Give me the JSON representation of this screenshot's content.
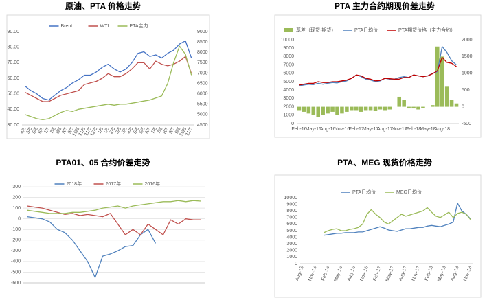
{
  "chart_data": [
    {
      "type": "line",
      "title": "原油、PTA 价格走势",
      "categories": [
        "4/5",
        "5/5",
        "5/5",
        "6/5",
        "7/5",
        "7/5",
        "8/5",
        "9/5",
        "9/5",
        "10/5",
        "11/5",
        "11/5",
        "12/5",
        "1/5",
        "1/5",
        "2/5",
        "3/5",
        "3/5",
        "4/5",
        "5/5",
        "5/5",
        "6/5",
        "7/5",
        "7/5",
        "8/5",
        "9/5",
        "9/5",
        "10/5",
        "11/5"
      ],
      "series": [
        {
          "name": "Brent",
          "color": "#4472c4",
          "values": [
            55,
            52,
            50,
            47,
            46,
            49,
            52,
            54,
            57,
            59,
            62,
            62,
            64,
            67,
            69,
            66,
            64,
            66,
            70,
            76,
            77,
            74,
            75,
            73,
            76,
            78,
            82,
            84,
            73
          ]
        },
        {
          "name": "WTI",
          "color": "#c0504d",
          "values": [
            51,
            49,
            47,
            45,
            45,
            47,
            49,
            50,
            51,
            52,
            56,
            57,
            58,
            60,
            63,
            61,
            61,
            63,
            66,
            70,
            70,
            66,
            71,
            69,
            68,
            69,
            71,
            74,
            63
          ]
        },
        {
          "name": "PTA主力",
          "color": "#9bbb59",
          "axis": "y2",
          "values": [
            5000,
            4900,
            4800,
            4750,
            4800,
            4950,
            5100,
            5200,
            5150,
            5250,
            5300,
            5350,
            5400,
            5450,
            5500,
            5450,
            5500,
            5500,
            5550,
            5600,
            5650,
            5700,
            5800,
            5900,
            6500,
            7500,
            8300,
            7900,
            6900
          ]
        }
      ],
      "ylim": [
        30,
        90
      ],
      "yticks": [
        {
          "value": 30,
          "label": "30.00"
        },
        {
          "value": 40,
          "label": "40.00"
        },
        {
          "value": 50,
          "label": "50.00"
        },
        {
          "value": 60,
          "label": "60.00"
        },
        {
          "value": 70,
          "label": "70.00"
        },
        {
          "value": 80,
          "label": "80.00"
        },
        {
          "value": 90,
          "label": "90.00"
        }
      ],
      "y2lim": [
        4500,
        9000
      ],
      "y2ticks": [
        4500,
        5000,
        5500,
        6000,
        6500,
        7000,
        7500,
        8000,
        8500,
        9000
      ],
      "xtick_rotation": -60,
      "grid": false
    },
    {
      "type": "line",
      "title": "PTA 主力合约期现价差走势",
      "categories": [
        "Feb-16",
        null,
        null,
        "May-16",
        null,
        null,
        "Aug-16",
        null,
        null,
        "Nov-16",
        null,
        null,
        "Feb-17",
        null,
        null,
        "May-17",
        null,
        null,
        "Aug-17",
        null,
        null,
        "Nov-17",
        null,
        null,
        "Feb-18",
        null,
        null,
        "May-18",
        null,
        null,
        "Aug-18",
        null,
        null,
        null
      ],
      "series": [
        {
          "name": "基差（现货-期货）",
          "color": "#9bbb59",
          "type": "bar",
          "axis": "y2",
          "values": [
            -100,
            -150,
            -200,
            -250,
            -300,
            -250,
            -200,
            -150,
            -250,
            -200,
            -150,
            -100,
            -100,
            -150,
            -100,
            -100,
            -120,
            -80,
            -100,
            -80,
            0,
            300,
            200,
            -50,
            -50,
            -80,
            -30,
            0,
            50,
            1800,
            1500,
            600,
            200,
            100
          ]
        },
        {
          "name": "PTA日均价",
          "color": "#4f81bd",
          "values": [
            4500,
            4600,
            4700,
            4650,
            4800,
            4700,
            4800,
            4900,
            4850,
            5000,
            5100,
            5400,
            5800,
            5600,
            5300,
            5200,
            5000,
            5100,
            5400,
            5300,
            5300,
            5500,
            5600,
            5500,
            5800,
            5700,
            5600,
            5700,
            6000,
            6200,
            9200,
            8500,
            7500,
            7000
          ]
        },
        {
          "name": "PTA期货价格（主力合约）",
          "color": "#c00000",
          "values": [
            4600,
            4700,
            4800,
            4800,
            5000,
            4900,
            4900,
            5000,
            5000,
            5100,
            5200,
            5400,
            5800,
            5700,
            5400,
            5300,
            5100,
            5150,
            5400,
            5350,
            5300,
            5300,
            5500,
            5500,
            5800,
            5700,
            5600,
            5700,
            5950,
            6300,
            7900,
            7300,
            7200,
            6800
          ]
        }
      ],
      "ylim": [
        0,
        10000
      ],
      "yticks": [
        0,
        1000,
        2000,
        3000,
        4000,
        5000,
        6000,
        7000,
        8000,
        9000,
        10000
      ],
      "y2lim": [
        -500,
        2000
      ],
      "y2ticks": [
        -500,
        0,
        500,
        1000,
        1500,
        2000
      ],
      "grid": false
    },
    {
      "type": "line",
      "title": "PTA01、05 合约价差走势",
      "categories": [
        null,
        null,
        null,
        null,
        null,
        null,
        null,
        null,
        null,
        null,
        null,
        null,
        null,
        null,
        null,
        null,
        null,
        null,
        null,
        null,
        null,
        null,
        null,
        null
      ],
      "series": [
        {
          "name": "2018年",
          "color": "#4f81bd",
          "values": [
            20,
            10,
            0,
            -30,
            -100,
            -130,
            -200,
            -300,
            -400,
            -550,
            -350,
            -330,
            -300,
            -260,
            -250,
            -150,
            -100,
            -230,
            null,
            null,
            null,
            null,
            null,
            null
          ]
        },
        {
          "name": "2017年",
          "color": "#c0504d",
          "values": [
            120,
            110,
            100,
            80,
            60,
            40,
            50,
            30,
            40,
            30,
            20,
            50,
            -50,
            -150,
            -100,
            -150,
            -50,
            -100,
            -150,
            -10,
            -50,
            0,
            -10,
            -10
          ]
        },
        {
          "name": "2016年",
          "color": "#9bbb59",
          "values": [
            80,
            70,
            60,
            50,
            50,
            50,
            60,
            60,
            70,
            80,
            100,
            110,
            120,
            100,
            120,
            130,
            140,
            150,
            160,
            160,
            170,
            160,
            170,
            165
          ]
        }
      ],
      "ylim": [
        -600,
        300
      ],
      "yticks": [
        -600,
        -500,
        -400,
        -300,
        -200,
        -100,
        0,
        100,
        200,
        300
      ],
      "grid": true
    },
    {
      "type": "line",
      "title": "PTA、MEG 现货价格走势",
      "categories": [
        "Aug-15",
        null,
        null,
        "Nov-15",
        null,
        null,
        "Feb-16",
        null,
        null,
        "May-16",
        null,
        null,
        "Aug-16",
        null,
        null,
        "Nov-16",
        null,
        null,
        "Feb-17",
        null,
        null,
        "May-17",
        null,
        null,
        "Aug-17",
        null,
        null,
        "Nov-17",
        null,
        null,
        "Feb-18",
        null,
        null,
        "May-18",
        null,
        null,
        "Aug-18",
        null,
        null,
        "Nov-18"
      ],
      "series": [
        {
          "name": "PTA日均价",
          "color": "#4f81bd",
          "values": [
            null,
            null,
            null,
            null,
            null,
            4300,
            4400,
            4500,
            4600,
            4600,
            4700,
            4700,
            4700,
            4800,
            4800,
            5000,
            5200,
            5400,
            5600,
            5400,
            5100,
            5000,
            4900,
            5100,
            5300,
            5300,
            5400,
            5500,
            5500,
            5700,
            5800,
            5700,
            5600,
            5800,
            6000,
            6300,
            9200,
            8000,
            7500,
            6800
          ]
        },
        {
          "name": "MEG日均价",
          "color": "#9bbb59",
          "values": [
            null,
            null,
            null,
            null,
            null,
            4700,
            5000,
            5200,
            5300,
            5000,
            5000,
            5200,
            5300,
            5500,
            6000,
            7500,
            8200,
            7500,
            7000,
            6300,
            6000,
            6500,
            7000,
            7500,
            7200,
            7400,
            7600,
            7800,
            8000,
            8500,
            7800,
            7200,
            7000,
            7400,
            7800,
            7000,
            7600,
            7800,
            7500,
            6700
          ]
        }
      ],
      "ylim": [
        0,
        10000
      ],
      "yticks": [
        0,
        1000,
        2000,
        3000,
        4000,
        5000,
        6000,
        7000,
        8000,
        9000,
        10000
      ],
      "xtick_rotation": -70,
      "grid": false
    }
  ]
}
